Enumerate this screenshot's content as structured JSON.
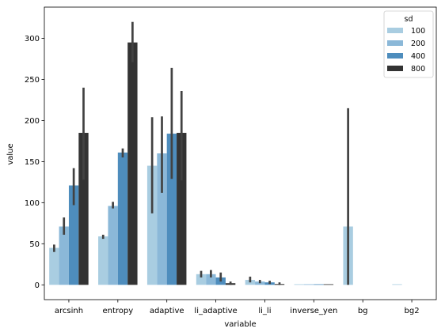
{
  "chart_data": {
    "type": "bar",
    "xlabel": "variable",
    "ylabel": "value",
    "ylim": [
      -18,
      338
    ],
    "yticks": [
      0,
      50,
      100,
      150,
      200,
      250,
      300
    ],
    "categories": [
      "arcsinh",
      "entropy",
      "adaptive",
      "li_adaptive",
      "li_li",
      "inverse_yen",
      "bg",
      "bg2"
    ],
    "legend": {
      "title": "sd",
      "placement": "top-right"
    },
    "series": [
      {
        "name": "100",
        "color": "#a9cde1",
        "values": [
          45,
          59,
          145,
          13,
          6,
          0,
          71,
          0
        ],
        "err_low": [
          40,
          56,
          87,
          9,
          3,
          0,
          0,
          0
        ],
        "err_high": [
          49,
          61,
          204,
          17,
          10,
          0,
          215,
          0
        ]
      },
      {
        "name": "200",
        "color": "#8bb8d8",
        "values": [
          71,
          96,
          160,
          13,
          4,
          0,
          null,
          null
        ],
        "err_low": [
          61,
          93,
          112,
          9,
          2,
          0,
          null,
          null
        ],
        "err_high": [
          82,
          101,
          205,
          18,
          6,
          0,
          null,
          null
        ]
      },
      {
        "name": "400",
        "color": "#4e8dbd",
        "values": [
          121,
          161,
          184,
          9,
          3,
          0,
          null,
          null
        ],
        "err_low": [
          97,
          155,
          129,
          4,
          1,
          0,
          null,
          null
        ],
        "err_high": [
          142,
          166,
          264,
          15,
          5,
          0,
          null,
          null
        ]
      },
      {
        "name": "800",
        "color": "#333333",
        "values": [
          185,
          295,
          185,
          2,
          1,
          0,
          null,
          null
        ],
        "err_low": [
          128,
          271,
          127,
          0,
          0,
          0,
          null,
          null
        ],
        "err_high": [
          240,
          320,
          236,
          4,
          3,
          0,
          null,
          null
        ]
      }
    ]
  }
}
